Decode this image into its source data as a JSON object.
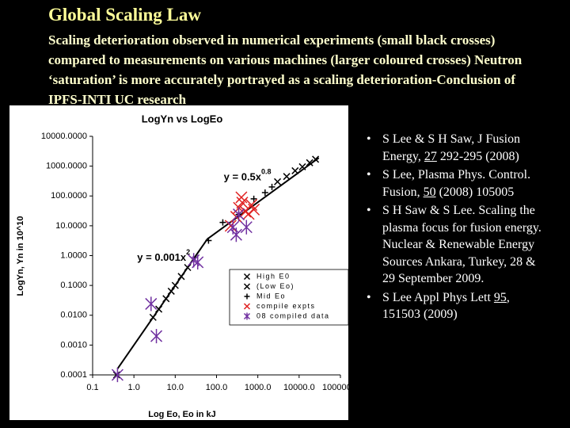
{
  "slide": {
    "title": "Global Scaling Law",
    "body": "Scaling deterioration observed in numerical experiments (small black crosses) compared to  measurements on various machines (larger coloured crosses) Neutron ‘saturation’ is more accurately portrayed as a scaling deterioration-Conclusion of IPFS-INTI UC research",
    "bullets": [
      [
        {
          "text": "S Lee & S H Saw, J Fusion Energy, ",
          "underline": false
        },
        {
          "text": "27",
          "underline": true
        },
        {
          "text": " 292-295 (2008)",
          "underline": false
        }
      ],
      [
        {
          "text": "S Lee, Plasma Phys. Control. Fusion, ",
          "underline": false
        },
        {
          "text": "50",
          "underline": true
        },
        {
          "text": " (2008) 105005",
          "underline": false
        }
      ],
      [
        {
          "text": "S H Saw & S Lee. Scaling the plasma focus for fusion energy. Nuclear & Renewable Energy Sources Ankara, Turkey, 28 & 29 September 2009.",
          "underline": false
        }
      ],
      [
        {
          "text": "S Lee Appl Phys Lett ",
          "underline": false
        },
        {
          "text": "95",
          "underline": true
        },
        {
          "text": ", 151503 (2009)",
          "underline": false
        }
      ]
    ]
  },
  "chart_data": {
    "type": "scatter",
    "title": "LogYn vs LogEo",
    "xlabel": "Log Eo,  Eo in kJ",
    "ylabel": "LogYn, Yn in 10^10",
    "xscale": "log",
    "yscale": "log",
    "xlim": [
      0.1,
      100000
    ],
    "ylim": [
      0.0001,
      10000
    ],
    "xticks": [
      {
        "value": 0.1,
        "label": "0.1"
      },
      {
        "value": 1,
        "label": "1.0"
      },
      {
        "value": 10,
        "label": "10.0"
      },
      {
        "value": 100,
        "label": "100.0"
      },
      {
        "value": 1000,
        "label": "1000.0"
      },
      {
        "value": 10000,
        "label": "10000.0"
      },
      {
        "value": 100000,
        "label": "100000.0"
      }
    ],
    "yticks": [
      {
        "value": 0.0001,
        "label": "0.0001"
      },
      {
        "value": 0.001,
        "label": "0.0010"
      },
      {
        "value": 0.01,
        "label": "0.0100"
      },
      {
        "value": 0.1,
        "label": "0.1000"
      },
      {
        "value": 1,
        "label": "1.0000"
      },
      {
        "value": 10,
        "label": "10.0000"
      },
      {
        "value": 100,
        "label": "100.0000"
      },
      {
        "value": 1000,
        "label": "1000.0000"
      },
      {
        "value": 10000,
        "label": "10000.0000"
      }
    ],
    "grid": false,
    "fit": {
      "color": "#000000",
      "x": [
        0.4,
        60,
        30000
      ],
      "y": [
        0.00016,
        3.6,
        1900
      ]
    },
    "annotations": [
      {
        "text": "y = 0.5x",
        "sup": "0.8",
        "x": 150,
        "y": 400
      },
      {
        "text": "y = 0.001x",
        "sup": "2",
        "x": 1.2,
        "y": 0.8
      }
    ],
    "series": [
      {
        "name": "High E0",
        "color": "#000000",
        "marker": "x",
        "size": 4,
        "x": [
          3000,
          5000,
          8000,
          12000,
          18000,
          25000
        ],
        "y": [
          300,
          450,
          700,
          950,
          1300,
          1700
        ]
      },
      {
        "name": "(Low Eo)",
        "color": "#000000",
        "marker": "x",
        "size": 4,
        "x": [
          0.38,
          2.9,
          4,
          6,
          8,
          10,
          14,
          20
        ],
        "y": [
          0.0001,
          0.0085,
          0.016,
          0.036,
          0.064,
          0.1,
          0.2,
          0.4
        ]
      },
      {
        "name": "Mid Eo",
        "color": "#000000",
        "marker": "+",
        "size": 4,
        "x": [
          64,
          142,
          345,
          800,
          1500,
          2200
        ],
        "y": [
          3.2,
          13,
          24,
          80,
          130,
          200
        ]
      },
      {
        "name": "compile expts",
        "color": "#e02020",
        "marker": "x",
        "size": 7,
        "x": [
          220,
          300,
          350,
          420,
          500,
          600,
          700,
          800,
          400
        ],
        "y": [
          10,
          20,
          40,
          60,
          30,
          25,
          50,
          35,
          90
        ]
      },
      {
        "name": "08 compiled data",
        "color": "#7030a0",
        "marker": "*",
        "size": 7,
        "x": [
          0.4,
          2.6,
          3.5,
          28,
          35,
          250,
          530,
          345,
          300
        ],
        "y": [
          0.0001,
          0.024,
          0.002,
          0.7,
          0.6,
          9,
          9,
          24,
          5
        ]
      }
    ]
  }
}
